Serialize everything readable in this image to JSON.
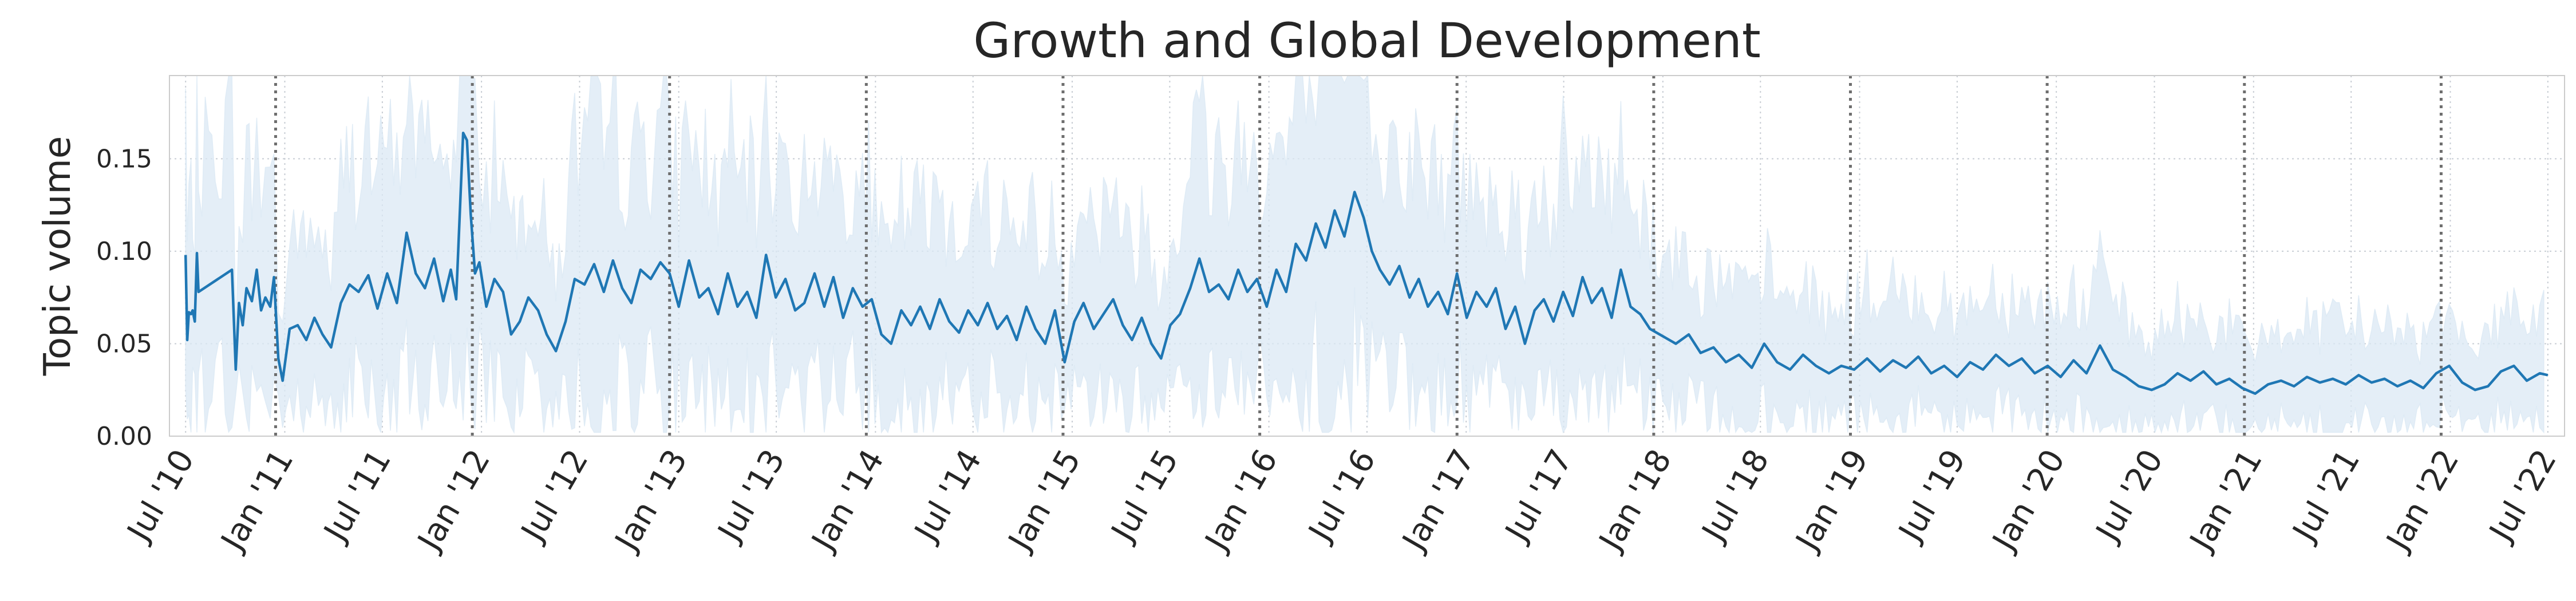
{
  "chart_data": {
    "type": "line",
    "title": "Growth and Global Development",
    "ylabel": "Topic volume",
    "xlabel": "",
    "xlim": [
      "2010-06-01",
      "2022-08-01"
    ],
    "ylim": [
      0.0,
      0.195
    ],
    "grid": true,
    "legend": "none",
    "x_tick_labels": [
      {
        "date": "2010-07-01",
        "label": "Jul '10"
      },
      {
        "date": "2011-01-01",
        "label": "Jan '11"
      },
      {
        "date": "2011-07-01",
        "label": "Jul '11"
      },
      {
        "date": "2012-01-01",
        "label": "Jan '12"
      },
      {
        "date": "2012-07-01",
        "label": "Jul '12"
      },
      {
        "date": "2013-01-01",
        "label": "Jan '13"
      },
      {
        "date": "2013-07-01",
        "label": "Jul '13"
      },
      {
        "date": "2014-01-01",
        "label": "Jan '14"
      },
      {
        "date": "2014-07-01",
        "label": "Jul '14"
      },
      {
        "date": "2015-01-01",
        "label": "Jan '15"
      },
      {
        "date": "2015-07-01",
        "label": "Jul '15"
      },
      {
        "date": "2016-01-01",
        "label": "Jan '16"
      },
      {
        "date": "2016-07-01",
        "label": "Jul '16"
      },
      {
        "date": "2017-01-01",
        "label": "Jan '17"
      },
      {
        "date": "2017-07-01",
        "label": "Jul '17"
      },
      {
        "date": "2018-01-01",
        "label": "Jan '18"
      },
      {
        "date": "2018-07-01",
        "label": "Jul '18"
      },
      {
        "date": "2019-01-01",
        "label": "Jan '19"
      },
      {
        "date": "2019-07-01",
        "label": "Jul '19"
      },
      {
        "date": "2020-01-01",
        "label": "Jan '20"
      },
      {
        "date": "2020-07-01",
        "label": "Jul '20"
      },
      {
        "date": "2021-01-01",
        "label": "Jan '21"
      },
      {
        "date": "2021-07-01",
        "label": "Jul '21"
      },
      {
        "date": "2022-01-01",
        "label": "Jan '22"
      },
      {
        "date": "2022-07-01",
        "label": "Jul '22"
      }
    ],
    "y_ticks": [
      {
        "value": 0.0,
        "label": "0.00"
      },
      {
        "value": 0.05,
        "label": "0.05"
      },
      {
        "value": 0.1,
        "label": "0.10"
      },
      {
        "value": 0.15,
        "label": "0.15"
      }
    ],
    "vertical_markers": [
      "2010-12-15",
      "2011-12-15",
      "2012-12-15",
      "2013-12-15",
      "2014-12-15",
      "2015-12-15",
      "2016-12-15",
      "2017-12-15",
      "2018-12-15",
      "2019-12-15",
      "2020-12-15",
      "2021-12-15"
    ],
    "colors": {
      "line": "#1f77b4",
      "band": "#dbe8f4",
      "grid": "#c8cdd4",
      "marker": "#6e6e6e",
      "frame": "#cccccc"
    },
    "series": [
      {
        "type": "smoothed_line",
        "points": [
          [
            "2010-07-01",
            0.098
          ],
          [
            "2010-07-04",
            0.052
          ],
          [
            "2010-07-07",
            0.067
          ],
          [
            "2010-07-11",
            0.066
          ],
          [
            "2010-07-14",
            0.068
          ],
          [
            "2010-07-18",
            0.062
          ],
          [
            "2010-07-22",
            0.099
          ],
          [
            "2010-07-25",
            0.078
          ],
          [
            "2010-09-25",
            0.09
          ],
          [
            "2010-10-02",
            0.036
          ],
          [
            "2010-10-08",
            0.072
          ],
          [
            "2010-10-15",
            0.06
          ],
          [
            "2010-10-22",
            0.08
          ],
          [
            "2010-11-01",
            0.073
          ],
          [
            "2010-11-10",
            0.09
          ],
          [
            "2010-11-18",
            0.068
          ],
          [
            "2010-11-26",
            0.075
          ],
          [
            "2010-12-05",
            0.07
          ],
          [
            "2010-12-12",
            0.086
          ],
          [
            "2010-12-20",
            0.042
          ],
          [
            "2010-12-28",
            0.03
          ],
          [
            "2011-01-10",
            0.058
          ],
          [
            "2011-01-25",
            0.06
          ],
          [
            "2011-02-10",
            0.052
          ],
          [
            "2011-02-25",
            0.064
          ],
          [
            "2011-03-12",
            0.055
          ],
          [
            "2011-03-28",
            0.048
          ],
          [
            "2011-04-15",
            0.072
          ],
          [
            "2011-05-01",
            0.082
          ],
          [
            "2011-05-18",
            0.078
          ],
          [
            "2011-06-05",
            0.087
          ],
          [
            "2011-06-22",
            0.069
          ],
          [
            "2011-07-10",
            0.088
          ],
          [
            "2011-07-28",
            0.072
          ],
          [
            "2011-08-15",
            0.11
          ],
          [
            "2011-09-01",
            0.088
          ],
          [
            "2011-09-18",
            0.08
          ],
          [
            "2011-10-05",
            0.096
          ],
          [
            "2011-10-22",
            0.073
          ],
          [
            "2011-11-05",
            0.09
          ],
          [
            "2011-11-15",
            0.074
          ],
          [
            "2011-11-28",
            0.164
          ],
          [
            "2011-12-05",
            0.16
          ],
          [
            "2011-12-12",
            0.12
          ],
          [
            "2011-12-20",
            0.088
          ],
          [
            "2011-12-28",
            0.094
          ],
          [
            "2012-01-10",
            0.07
          ],
          [
            "2012-01-25",
            0.085
          ],
          [
            "2012-02-10",
            0.078
          ],
          [
            "2012-02-25",
            0.055
          ],
          [
            "2012-03-12",
            0.062
          ],
          [
            "2012-03-28",
            0.075
          ],
          [
            "2012-04-15",
            0.068
          ],
          [
            "2012-05-01",
            0.055
          ],
          [
            "2012-05-18",
            0.046
          ],
          [
            "2012-06-05",
            0.062
          ],
          [
            "2012-06-22",
            0.085
          ],
          [
            "2012-07-10",
            0.082
          ],
          [
            "2012-07-28",
            0.093
          ],
          [
            "2012-08-15",
            0.078
          ],
          [
            "2012-09-01",
            0.095
          ],
          [
            "2012-09-18",
            0.08
          ],
          [
            "2012-10-05",
            0.072
          ],
          [
            "2012-10-22",
            0.09
          ],
          [
            "2012-11-10",
            0.085
          ],
          [
            "2012-11-28",
            0.094
          ],
          [
            "2012-12-15",
            0.088
          ],
          [
            "2013-01-01",
            0.07
          ],
          [
            "2013-01-20",
            0.095
          ],
          [
            "2013-02-08",
            0.075
          ],
          [
            "2013-02-25",
            0.08
          ],
          [
            "2013-03-15",
            0.066
          ],
          [
            "2013-04-02",
            0.088
          ],
          [
            "2013-04-20",
            0.07
          ],
          [
            "2013-05-08",
            0.078
          ],
          [
            "2013-05-25",
            0.064
          ],
          [
            "2013-06-12",
            0.098
          ],
          [
            "2013-06-30",
            0.075
          ],
          [
            "2013-07-18",
            0.085
          ],
          [
            "2013-08-05",
            0.068
          ],
          [
            "2013-08-22",
            0.072
          ],
          [
            "2013-09-10",
            0.088
          ],
          [
            "2013-09-28",
            0.07
          ],
          [
            "2013-10-15",
            0.086
          ],
          [
            "2013-11-02",
            0.064
          ],
          [
            "2013-11-20",
            0.08
          ],
          [
            "2013-12-08",
            0.07
          ],
          [
            "2013-12-25",
            0.074
          ],
          [
            "2014-01-12",
            0.055
          ],
          [
            "2014-01-30",
            0.05
          ],
          [
            "2014-02-18",
            0.068
          ],
          [
            "2014-03-08",
            0.06
          ],
          [
            "2014-03-25",
            0.07
          ],
          [
            "2014-04-12",
            0.058
          ],
          [
            "2014-04-30",
            0.074
          ],
          [
            "2014-05-18",
            0.062
          ],
          [
            "2014-06-05",
            0.056
          ],
          [
            "2014-06-22",
            0.068
          ],
          [
            "2014-07-10",
            0.06
          ],
          [
            "2014-07-28",
            0.072
          ],
          [
            "2014-08-15",
            0.058
          ],
          [
            "2014-09-02",
            0.065
          ],
          [
            "2014-09-20",
            0.052
          ],
          [
            "2014-10-08",
            0.07
          ],
          [
            "2014-10-25",
            0.058
          ],
          [
            "2014-11-12",
            0.05
          ],
          [
            "2014-11-30",
            0.068
          ],
          [
            "2014-12-18",
            0.04
          ],
          [
            "2015-01-05",
            0.062
          ],
          [
            "2015-01-22",
            0.072
          ],
          [
            "2015-02-10",
            0.058
          ],
          [
            "2015-02-28",
            0.066
          ],
          [
            "2015-03-18",
            0.074
          ],
          [
            "2015-04-05",
            0.06
          ],
          [
            "2015-04-22",
            0.052
          ],
          [
            "2015-05-10",
            0.064
          ],
          [
            "2015-05-28",
            0.05
          ],
          [
            "2015-06-15",
            0.042
          ],
          [
            "2015-07-02",
            0.06
          ],
          [
            "2015-07-20",
            0.066
          ],
          [
            "2015-08-08",
            0.08
          ],
          [
            "2015-08-25",
            0.096
          ],
          [
            "2015-09-12",
            0.078
          ],
          [
            "2015-09-30",
            0.082
          ],
          [
            "2015-10-18",
            0.074
          ],
          [
            "2015-11-05",
            0.09
          ],
          [
            "2015-11-22",
            0.078
          ],
          [
            "2015-12-10",
            0.085
          ],
          [
            "2015-12-28",
            0.07
          ],
          [
            "2016-01-15",
            0.09
          ],
          [
            "2016-02-02",
            0.078
          ],
          [
            "2016-02-20",
            0.104
          ],
          [
            "2016-03-10",
            0.095
          ],
          [
            "2016-03-28",
            0.115
          ],
          [
            "2016-04-15",
            0.102
          ],
          [
            "2016-05-02",
            0.122
          ],
          [
            "2016-05-20",
            0.108
          ],
          [
            "2016-06-08",
            0.132
          ],
          [
            "2016-06-25",
            0.118
          ],
          [
            "2016-07-10",
            0.1
          ],
          [
            "2016-07-25",
            0.09
          ],
          [
            "2016-08-12",
            0.082
          ],
          [
            "2016-08-30",
            0.092
          ],
          [
            "2016-09-18",
            0.075
          ],
          [
            "2016-10-05",
            0.085
          ],
          [
            "2016-10-22",
            0.07
          ],
          [
            "2016-11-10",
            0.078
          ],
          [
            "2016-11-28",
            0.066
          ],
          [
            "2016-12-15",
            0.088
          ],
          [
            "2017-01-02",
            0.064
          ],
          [
            "2017-01-20",
            0.078
          ],
          [
            "2017-02-08",
            0.07
          ],
          [
            "2017-02-25",
            0.08
          ],
          [
            "2017-03-15",
            0.058
          ],
          [
            "2017-04-02",
            0.07
          ],
          [
            "2017-04-20",
            0.05
          ],
          [
            "2017-05-08",
            0.068
          ],
          [
            "2017-05-25",
            0.074
          ],
          [
            "2017-06-12",
            0.062
          ],
          [
            "2017-06-30",
            0.078
          ],
          [
            "2017-07-18",
            0.065
          ],
          [
            "2017-08-05",
            0.086
          ],
          [
            "2017-08-22",
            0.072
          ],
          [
            "2017-09-10",
            0.08
          ],
          [
            "2017-09-28",
            0.064
          ],
          [
            "2017-10-15",
            0.09
          ],
          [
            "2017-11-02",
            0.07
          ],
          [
            "2017-11-20",
            0.066
          ],
          [
            "2017-12-08",
            0.058
          ],
          [
            "2018-01-01",
            0.054
          ],
          [
            "2018-01-25",
            0.05
          ],
          [
            "2018-02-18",
            0.055
          ],
          [
            "2018-03-12",
            0.045
          ],
          [
            "2018-04-05",
            0.048
          ],
          [
            "2018-04-28",
            0.04
          ],
          [
            "2018-05-22",
            0.044
          ],
          [
            "2018-06-15",
            0.037
          ],
          [
            "2018-07-08",
            0.05
          ],
          [
            "2018-08-01",
            0.04
          ],
          [
            "2018-08-25",
            0.036
          ],
          [
            "2018-09-18",
            0.044
          ],
          [
            "2018-10-12",
            0.038
          ],
          [
            "2018-11-05",
            0.034
          ],
          [
            "2018-11-28",
            0.038
          ],
          [
            "2018-12-22",
            0.036
          ],
          [
            "2019-01-15",
            0.042
          ],
          [
            "2019-02-08",
            0.035
          ],
          [
            "2019-03-04",
            0.041
          ],
          [
            "2019-03-28",
            0.037
          ],
          [
            "2019-04-20",
            0.043
          ],
          [
            "2019-05-14",
            0.034
          ],
          [
            "2019-06-07",
            0.038
          ],
          [
            "2019-07-01",
            0.032
          ],
          [
            "2019-07-25",
            0.04
          ],
          [
            "2019-08-18",
            0.036
          ],
          [
            "2019-09-11",
            0.044
          ],
          [
            "2019-10-05",
            0.038
          ],
          [
            "2019-10-29",
            0.042
          ],
          [
            "2019-11-22",
            0.034
          ],
          [
            "2019-12-16",
            0.038
          ],
          [
            "2020-01-09",
            0.032
          ],
          [
            "2020-02-02",
            0.041
          ],
          [
            "2020-02-26",
            0.034
          ],
          [
            "2020-03-22",
            0.049
          ],
          [
            "2020-04-15",
            0.036
          ],
          [
            "2020-05-09",
            0.032
          ],
          [
            "2020-06-02",
            0.027
          ],
          [
            "2020-06-26",
            0.025
          ],
          [
            "2020-07-20",
            0.028
          ],
          [
            "2020-08-13",
            0.034
          ],
          [
            "2020-09-06",
            0.03
          ],
          [
            "2020-09-30",
            0.035
          ],
          [
            "2020-10-24",
            0.028
          ],
          [
            "2020-11-17",
            0.031
          ],
          [
            "2020-12-11",
            0.026
          ],
          [
            "2021-01-04",
            0.023
          ],
          [
            "2021-01-28",
            0.028
          ],
          [
            "2021-02-21",
            0.03
          ],
          [
            "2021-03-17",
            0.027
          ],
          [
            "2021-04-10",
            0.032
          ],
          [
            "2021-05-04",
            0.029
          ],
          [
            "2021-05-28",
            0.031
          ],
          [
            "2021-06-21",
            0.028
          ],
          [
            "2021-07-15",
            0.033
          ],
          [
            "2021-08-08",
            0.029
          ],
          [
            "2021-09-01",
            0.031
          ],
          [
            "2021-09-25",
            0.027
          ],
          [
            "2021-10-19",
            0.03
          ],
          [
            "2021-11-12",
            0.026
          ],
          [
            "2021-12-06",
            0.034
          ],
          [
            "2021-12-30",
            0.038
          ],
          [
            "2022-01-23",
            0.029
          ],
          [
            "2022-02-16",
            0.025
          ],
          [
            "2022-03-12",
            0.027
          ],
          [
            "2022-04-05",
            0.035
          ],
          [
            "2022-04-29",
            0.038
          ],
          [
            "2022-05-23",
            0.03
          ],
          [
            "2022-06-16",
            0.034
          ],
          [
            "2022-07-01",
            0.033
          ]
        ]
      }
    ]
  }
}
